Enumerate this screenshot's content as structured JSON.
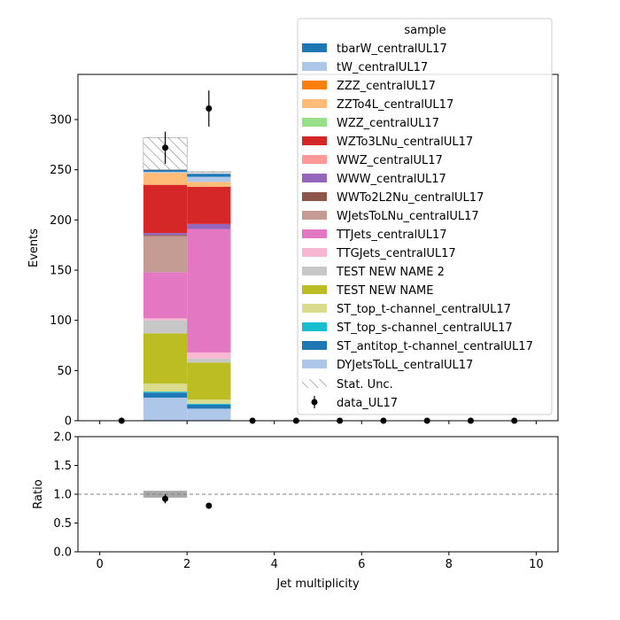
{
  "chart_data": [
    {
      "type": "bar",
      "stacked": true,
      "x_edges": [
        0,
        1,
        2,
        3,
        4,
        5,
        6,
        7,
        8,
        9,
        10
      ],
      "xlim": [
        -0.5,
        10.5
      ],
      "ylim": [
        0,
        345
      ],
      "ylabel": "Events",
      "yticks": [
        "0",
        "50",
        "100",
        "150",
        "200",
        "250",
        "300"
      ],
      "grid": false,
      "legend": {
        "title": "sample",
        "placement": "top-right",
        "stat_unc_label": "Stat. Unc.",
        "data_label": "data_UL17"
      },
      "series": [
        {
          "name": "DYJetsToLL_centralUL17",
          "color": "#aec7e8",
          "values": [
            0,
            23,
            12,
            0,
            0,
            0,
            0,
            0,
            0,
            0
          ]
        },
        {
          "name": "ST_antitop_t-channel_centralUL17",
          "color": "#1f77b4",
          "values": [
            0,
            5,
            4,
            0,
            0,
            0,
            0,
            0,
            0,
            0
          ]
        },
        {
          "name": "ST_top_s-channel_centralUL17",
          "color": "#17becf",
          "values": [
            0,
            1,
            1,
            0,
            0,
            0,
            0,
            0,
            0,
            0
          ]
        },
        {
          "name": "ST_top_t-channel_centralUL17",
          "color": "#dbdb8d",
          "values": [
            0,
            8,
            4,
            0,
            0,
            0,
            0,
            0,
            0,
            0
          ]
        },
        {
          "name": "TEST NEW NAME",
          "color": "#bcbd22",
          "values": [
            0,
            50,
            37,
            0,
            0,
            0,
            0,
            0,
            0,
            0
          ]
        },
        {
          "name": "TEST NEW NAME 2",
          "color": "#c7c7c7",
          "values": [
            0,
            13,
            4,
            0,
            0,
            0,
            0,
            0,
            0,
            0
          ]
        },
        {
          "name": "TTGJets_centralUL17",
          "color": "#f7b6d2",
          "values": [
            0,
            2,
            6,
            0,
            0,
            0,
            0,
            0,
            0,
            0
          ]
        },
        {
          "name": "TTJets_centralUL17",
          "color": "#e377c2",
          "values": [
            0,
            46,
            123,
            0,
            0,
            0,
            0,
            0,
            0,
            0
          ]
        },
        {
          "name": "WJetsToLNu_centralUL17",
          "color": "#c49c94",
          "values": [
            0,
            36,
            0,
            0,
            0,
            0,
            0,
            0,
            0,
            0
          ]
        },
        {
          "name": "WWTo2L2Nu_centralUL17",
          "color": "#8c564b",
          "values": [
            0,
            1,
            0,
            0,
            0,
            0,
            0,
            0,
            0,
            0
          ]
        },
        {
          "name": "WWW_centralUL17",
          "color": "#9467bd",
          "values": [
            0,
            2,
            5,
            0,
            0,
            0,
            0,
            0,
            0,
            0
          ]
        },
        {
          "name": "WWZ_centralUL17",
          "color": "#ff9896",
          "values": [
            0,
            0,
            0,
            0,
            0,
            0,
            0,
            0,
            0,
            0
          ]
        },
        {
          "name": "WZTo3LNu_centralUL17",
          "color": "#d62728",
          "values": [
            0,
            48,
            37,
            0,
            0,
            0,
            0,
            0,
            0,
            0
          ]
        },
        {
          "name": "WZZ_centralUL17",
          "color": "#98df8a",
          "values": [
            0,
            0,
            0,
            0,
            0,
            0,
            0,
            0,
            0,
            0
          ]
        },
        {
          "name": "ZZTo4L_centralUL17",
          "color": "#ffbb78",
          "values": [
            0,
            12,
            5,
            0,
            0,
            0,
            0,
            0,
            0,
            0
          ]
        },
        {
          "name": "ZZZ_centralUL17",
          "color": "#ff7f0e",
          "values": [
            0,
            0,
            0,
            0,
            0,
            0,
            0,
            0,
            0,
            0
          ]
        },
        {
          "name": "tW_centralUL17",
          "color": "#aec7e8",
          "values": [
            0,
            1,
            5,
            0,
            0,
            0,
            0,
            0,
            0,
            0
          ]
        },
        {
          "name": "tbarW_centralUL17",
          "color": "#1f77b4",
          "values": [
            0,
            2,
            3,
            0,
            0,
            0,
            0,
            0,
            0,
            0
          ]
        }
      ],
      "stat_unc": [
        {
          "x0": 1,
          "x1": 2,
          "low": 250,
          "high": 282
        },
        {
          "x0": 2,
          "x1": 3,
          "low": 248,
          "high": 248
        }
      ],
      "data_points": [
        {
          "x": 0.5,
          "y": 0,
          "err": 0
        },
        {
          "x": 1.5,
          "y": 272,
          "err": 16
        },
        {
          "x": 2.5,
          "y": 311,
          "err": 18
        },
        {
          "x": 3.5,
          "y": 0,
          "err": 0
        },
        {
          "x": 4.5,
          "y": 0,
          "err": 0
        },
        {
          "x": 5.5,
          "y": 0,
          "err": 0
        },
        {
          "x": 6.5,
          "y": 0,
          "err": 0
        },
        {
          "x": 7.5,
          "y": 0,
          "err": 0
        },
        {
          "x": 8.5,
          "y": 0,
          "err": 0
        },
        {
          "x": 9.5,
          "y": 0,
          "err": 0
        }
      ]
    },
    {
      "type": "scatter",
      "xlabel": "Jet multiplicity",
      "ylabel": "Ratio",
      "xlim": [
        -0.5,
        10.5
      ],
      "ylim": [
        0,
        2
      ],
      "xticks": [
        "0",
        "2",
        "4",
        "6",
        "8",
        "10"
      ],
      "yticks": [
        "0.0",
        "0.5",
        "1.0",
        "1.5",
        "2.0"
      ],
      "reference_line": 1.0,
      "unc_band": [
        {
          "x0": 1,
          "x1": 2,
          "low": 0.94,
          "high": 1.06
        }
      ],
      "points": [
        {
          "x": 1.5,
          "y": 0.92,
          "err": 0.08
        },
        {
          "x": 2.5,
          "y": 0.8,
          "err": 0
        }
      ]
    }
  ]
}
